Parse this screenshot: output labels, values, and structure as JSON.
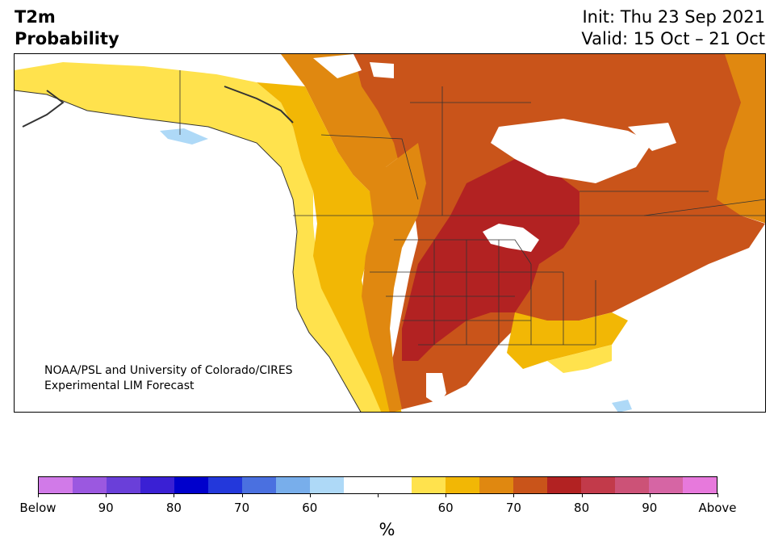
{
  "title": {
    "left_line1": "T2m",
    "left_line2": "Probability",
    "right_line1": "Init: Thu 23 Sep 2021",
    "right_line2": "Valid: 15 Oct – 21 Oct"
  },
  "map": {
    "credit_line1": "NOAA/PSL and University of Colorado/CIRES",
    "credit_line2": "Experimental LIM Forecast",
    "region": "North America"
  },
  "colorbar": {
    "colors": [
      "#d17ae8",
      "#9b58e0",
      "#6a3fd9",
      "#3a20d4",
      "#0000cc",
      "#2338db",
      "#4a70e0",
      "#78aeeb",
      "#aed9f7",
      "#ffffff",
      "#ffffff",
      "#ffe24d",
      "#f2b705",
      "#e08810",
      "#c9541a",
      "#b22222",
      "#c23a4a",
      "#cc5277",
      "#d665a4",
      "#e779dc"
    ],
    "tick_labels": [
      "Below",
      "90",
      "80",
      "70",
      "60",
      "",
      "60",
      "70",
      "80",
      "90",
      "Above"
    ],
    "units": "%"
  },
  "legend_colors": {
    "prob_55_60_above": "#ffe24d",
    "prob_60_65_above": "#f2b705",
    "prob_65_70_above": "#e08810",
    "prob_70_75_above": "#c9541a",
    "prob_75_80_above": "#b22222",
    "prob_60_below": "#aed9f7",
    "land_neutral": "#ffffff"
  }
}
